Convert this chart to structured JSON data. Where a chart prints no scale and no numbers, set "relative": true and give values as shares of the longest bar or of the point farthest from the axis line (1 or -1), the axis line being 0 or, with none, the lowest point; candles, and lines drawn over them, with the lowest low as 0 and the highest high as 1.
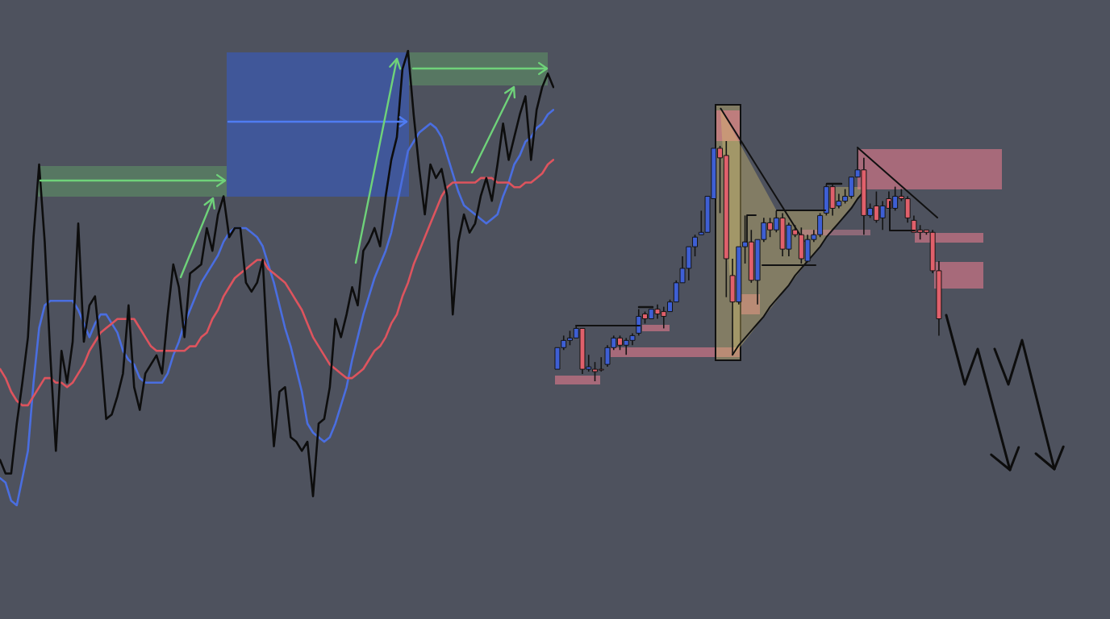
{
  "chart_data": [
    {
      "type": "line",
      "relative": true,
      "categories": [
        null,
        null,
        null,
        null,
        null,
        null,
        null,
        null,
        null,
        null,
        null,
        null,
        null,
        null,
        null,
        null,
        null,
        null,
        null,
        null,
        null,
        null,
        null,
        null,
        null,
        null,
        null,
        null,
        null,
        null,
        null,
        null,
        null,
        null,
        null,
        null,
        null,
        null,
        null,
        null,
        null,
        null,
        null,
        null,
        null,
        null,
        null,
        null,
        null,
        null,
        null,
        null,
        null,
        null,
        null,
        null,
        null,
        null,
        null,
        null,
        null,
        null,
        null,
        null,
        null,
        null,
        null,
        null,
        null,
        null,
        null,
        null,
        null,
        null,
        null,
        null,
        null,
        null,
        null,
        null,
        null,
        null,
        null,
        null,
        null,
        null,
        null,
        null,
        null,
        null,
        null,
        null,
        null,
        null,
        null,
        null,
        null,
        null,
        null,
        null
      ],
      "series": [
        {
          "color": "#4a6ee0",
          "values": [
            0.06,
            0.05,
            0.01,
            0.0,
            0.06,
            0.12,
            0.27,
            0.39,
            0.44,
            0.45,
            0.45,
            0.45,
            0.45,
            0.45,
            0.43,
            0.4,
            0.37,
            0.4,
            0.42,
            0.42,
            0.4,
            0.38,
            0.34,
            0.32,
            0.31,
            0.28,
            0.27,
            0.27,
            0.27,
            0.27,
            0.29,
            0.33,
            0.36,
            0.4,
            0.43,
            0.46,
            0.49,
            0.51,
            0.53,
            0.55,
            0.58,
            0.6,
            0.61,
            0.61,
            0.61,
            0.6,
            0.59,
            0.57,
            0.53,
            0.49,
            0.44,
            0.39,
            0.35,
            0.3,
            0.25,
            0.18,
            0.16,
            0.15,
            0.14,
            0.15,
            0.18,
            0.22,
            0.26,
            0.32,
            0.37,
            0.42,
            0.46,
            0.5,
            0.53,
            0.56,
            0.6,
            0.66,
            0.72,
            0.78,
            0.8,
            0.82,
            0.83,
            0.84,
            0.83,
            0.81,
            0.77,
            0.73,
            0.69,
            0.66,
            0.65,
            0.64,
            0.63,
            0.62,
            0.63,
            0.64,
            0.68,
            0.71,
            0.75,
            0.77,
            0.8,
            0.81,
            0.83,
            0.84,
            0.86,
            0.87
          ]
        },
        {
          "color": "#dd545e",
          "values": [
            0.3,
            0.28,
            0.25,
            0.23,
            0.22,
            0.22,
            0.24,
            0.26,
            0.28,
            0.28,
            0.27,
            0.27,
            0.26,
            0.27,
            0.29,
            0.31,
            0.34,
            0.36,
            0.38,
            0.39,
            0.4,
            0.41,
            0.41,
            0.41,
            0.41,
            0.39,
            0.37,
            0.35,
            0.34,
            0.34,
            0.34,
            0.34,
            0.34,
            0.34,
            0.35,
            0.35,
            0.37,
            0.38,
            0.41,
            0.43,
            0.46,
            0.48,
            0.5,
            0.51,
            0.52,
            0.53,
            0.54,
            0.54,
            0.52,
            0.51,
            0.5,
            0.49,
            0.47,
            0.45,
            0.43,
            0.4,
            0.37,
            0.35,
            0.33,
            0.31,
            0.3,
            0.29,
            0.28,
            0.28,
            0.29,
            0.3,
            0.32,
            0.34,
            0.35,
            0.37,
            0.4,
            0.42,
            0.46,
            0.49,
            0.53,
            0.56,
            0.59,
            0.62,
            0.65,
            0.68,
            0.7,
            0.71,
            0.71,
            0.71,
            0.71,
            0.71,
            0.72,
            0.72,
            0.72,
            0.71,
            0.71,
            0.71,
            0.7,
            0.7,
            0.71,
            0.71,
            0.72,
            0.73,
            0.75,
            0.76
          ]
        },
        {
          "color": "#0d0d0d",
          "values": [
            0.1,
            0.07,
            0.07,
            0.18,
            0.27,
            0.37,
            0.59,
            0.75,
            0.58,
            0.33,
            0.12,
            0.34,
            0.27,
            0.36,
            0.62,
            0.36,
            0.44,
            0.46,
            0.34,
            0.19,
            0.2,
            0.24,
            0.29,
            0.44,
            0.26,
            0.21,
            0.29,
            0.31,
            0.33,
            0.29,
            0.42,
            0.53,
            0.48,
            0.37,
            0.51,
            0.52,
            0.53,
            0.61,
            0.56,
            0.64,
            0.68,
            0.59,
            0.61,
            0.61,
            0.49,
            0.47,
            0.49,
            0.54,
            0.31,
            0.13,
            0.25,
            0.26,
            0.15,
            0.14,
            0.12,
            0.14,
            0.02,
            0.18,
            0.19,
            0.26,
            0.41,
            0.37,
            0.42,
            0.48,
            0.44,
            0.56,
            0.58,
            0.61,
            0.57,
            0.68,
            0.76,
            0.81,
            0.96,
            1.0,
            0.86,
            0.74,
            0.64,
            0.75,
            0.72,
            0.74,
            0.68,
            0.42,
            0.58,
            0.64,
            0.6,
            0.62,
            0.68,
            0.72,
            0.67,
            0.75,
            0.84,
            0.76,
            0.81,
            0.86,
            0.9,
            0.76,
            0.87,
            0.92,
            0.95,
            0.92
          ]
        }
      ]
    },
    {
      "type": "candlestick",
      "relative": true,
      "categories": [
        null,
        null,
        null,
        null,
        null,
        null,
        null,
        null,
        null,
        null,
        null,
        null,
        null,
        null,
        null,
        null,
        null,
        null,
        null,
        null,
        null,
        null,
        null,
        null,
        null,
        null,
        null,
        null,
        null,
        null,
        null,
        null,
        null,
        null,
        null,
        null,
        null,
        null,
        null,
        null,
        null,
        null,
        null,
        null,
        null,
        null,
        null,
        null,
        null,
        null,
        null,
        null,
        null,
        null,
        null,
        null,
        null,
        null,
        null,
        null,
        null,
        null
      ],
      "ohlc": [
        [
          0.05,
          0.14,
          0.05,
          0.14
        ],
        [
          0.14,
          0.19,
          0.13,
          0.17
        ],
        [
          0.17,
          0.21,
          0.15,
          0.18
        ],
        [
          0.18,
          0.23,
          0.18,
          0.22
        ],
        [
          0.22,
          0.22,
          0.03,
          0.05
        ],
        [
          0.05,
          0.11,
          0.04,
          0.06
        ],
        [
          0.05,
          0.08,
          0.0,
          0.04
        ],
        [
          0.05,
          0.1,
          0.04,
          0.05
        ],
        [
          0.07,
          0.15,
          0.06,
          0.14
        ],
        [
          0.14,
          0.19,
          0.13,
          0.18
        ],
        [
          0.18,
          0.19,
          0.13,
          0.15
        ],
        [
          0.15,
          0.18,
          0.11,
          0.17
        ],
        [
          0.17,
          0.2,
          0.15,
          0.19
        ],
        [
          0.2,
          0.3,
          0.19,
          0.27
        ],
        [
          0.28,
          0.29,
          0.24,
          0.26
        ],
        [
          0.26,
          0.3,
          0.26,
          0.3
        ],
        [
          0.3,
          0.32,
          0.26,
          0.28
        ],
        [
          0.29,
          0.31,
          0.22,
          0.27
        ],
        [
          0.29,
          0.34,
          0.29,
          0.33
        ],
        [
          0.33,
          0.42,
          0.33,
          0.41
        ],
        [
          0.41,
          0.52,
          0.41,
          0.47
        ],
        [
          0.47,
          0.56,
          0.42,
          0.56
        ],
        [
          0.56,
          0.61,
          0.52,
          0.6
        ],
        [
          0.61,
          0.71,
          0.61,
          0.62
        ],
        [
          0.62,
          0.77,
          0.62,
          0.77
        ],
        [
          0.76,
          0.97,
          0.76,
          0.97
        ],
        [
          0.97,
          0.98,
          0.7,
          0.93
        ],
        [
          0.94,
          1.0,
          0.35,
          0.51
        ],
        [
          0.44,
          0.51,
          0.11,
          0.33
        ],
        [
          0.33,
          0.56,
          0.32,
          0.56
        ],
        [
          0.56,
          0.69,
          0.49,
          0.58
        ],
        [
          0.58,
          0.63,
          0.41,
          0.42
        ],
        [
          0.42,
          0.59,
          0.32,
          0.59
        ],
        [
          0.59,
          0.68,
          0.58,
          0.66
        ],
        [
          0.66,
          0.68,
          0.6,
          0.63
        ],
        [
          0.63,
          0.71,
          0.62,
          0.68
        ],
        [
          0.68,
          0.7,
          0.52,
          0.55
        ],
        [
          0.55,
          0.66,
          0.52,
          0.65
        ],
        [
          0.63,
          0.65,
          0.6,
          0.61
        ],
        [
          0.61,
          0.64,
          0.49,
          0.51
        ],
        [
          0.5,
          0.61,
          0.5,
          0.59
        ],
        [
          0.59,
          0.63,
          0.58,
          0.61
        ],
        [
          0.61,
          0.7,
          0.6,
          0.69
        ],
        [
          0.7,
          0.82,
          0.69,
          0.81
        ],
        [
          0.81,
          0.82,
          0.69,
          0.72
        ],
        [
          0.73,
          0.78,
          0.72,
          0.75
        ],
        [
          0.75,
          0.8,
          0.74,
          0.77
        ],
        [
          0.77,
          0.85,
          0.76,
          0.85
        ],
        [
          0.85,
          0.97,
          0.85,
          0.88
        ],
        [
          0.88,
          0.93,
          0.61,
          0.69
        ],
        [
          0.69,
          0.74,
          0.68,
          0.72
        ],
        [
          0.73,
          0.79,
          0.66,
          0.67
        ],
        [
          0.68,
          0.75,
          0.63,
          0.73
        ],
        [
          0.76,
          0.79,
          0.72,
          0.72
        ],
        [
          0.72,
          0.81,
          0.71,
          0.77
        ],
        [
          0.77,
          0.8,
          0.75,
          0.76
        ],
        [
          0.76,
          0.77,
          0.66,
          0.68
        ],
        [
          0.67,
          0.69,
          0.62,
          0.62
        ],
        [
          0.63,
          0.65,
          0.59,
          0.62
        ],
        [
          0.63,
          0.63,
          0.61,
          0.62
        ],
        [
          0.62,
          0.63,
          0.45,
          0.46
        ],
        [
          0.46,
          0.5,
          0.19,
          0.26
        ]
      ],
      "colors": [
        "#3e5fd4",
        "#3e5fd4",
        "#3e5fd4",
        "#3e5fd4",
        "#e0606b",
        "#3e5fd4",
        "#e0606b",
        "#e0606b",
        "#3e5fd4",
        "#3e5fd4",
        "#e0606b",
        "#3e5fd4",
        "#3e5fd4",
        "#3e5fd4",
        "#e0606b",
        "#3e5fd4",
        "#e0606b",
        "#e0606b",
        "#3e5fd4",
        "#3e5fd4",
        "#3e5fd4",
        "#3e5fd4",
        "#3e5fd4",
        "#3e5fd4",
        "#3e5fd4",
        "#3e5fd4",
        "#e0606b",
        "#e0606b",
        "#e0606b",
        "#3e5fd4",
        "#3e5fd4",
        "#e0606b",
        "#3e5fd4",
        "#3e5fd4",
        "#e0606b",
        "#3e5fd4",
        "#e0606b",
        "#3e5fd4",
        "#e0606b",
        "#e0606b",
        "#3e5fd4",
        "#3e5fd4",
        "#3e5fd4",
        "#3e5fd4",
        "#e0606b",
        "#3e5fd4",
        "#3e5fd4",
        "#3e5fd4",
        "#3e5fd4",
        "#e0606b",
        "#3e5fd4",
        "#e0606b",
        "#3e5fd4",
        "#e0606b",
        "#3e5fd4",
        "#e0606b",
        "#e0606b",
        "#e0606b",
        "#e0606b",
        "#e0606b",
        "#e0606b",
        "#e0606b"
      ],
      "series": [
        {
          "type": "line",
          "color": "#111111",
          "values": [
            null,
            null,
            null,
            null,
            null,
            null,
            null,
            null,
            null,
            null,
            null,
            null,
            null,
            null,
            null,
            null,
            null,
            null,
            null,
            null,
            null,
            null,
            null,
            null,
            null,
            null,
            null,
            null,
            0.11,
            0.15,
            0.18,
            0.21,
            0.24,
            0.27,
            0.31,
            0.34,
            0.37,
            0.4,
            0.44,
            0.47,
            0.5,
            0.53,
            0.56,
            0.6,
            0.63,
            0.66,
            0.69,
            0.72,
            0.76,
            0.79,
            null,
            null,
            null,
            null,
            null,
            null,
            null,
            null,
            null,
            null,
            null,
            null
          ]
        }
      ]
    }
  ]
}
